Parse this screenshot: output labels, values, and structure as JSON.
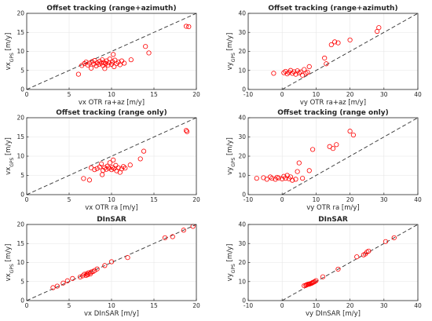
{
  "colors": {
    "marker": "#ff0000",
    "reference_line": "#333333",
    "axes": "#262626",
    "grid": "#e6e6e6"
  },
  "chart_data": [
    {
      "type": "scatter",
      "title": "Offset tracking (range+azimuth)",
      "xlabel": "vx OTR ra+az [m/y]",
      "ylabel": "vx",
      "ylabel_sub": "GPS",
      "ylabel_unit": "[m/y]",
      "xlim": [
        0,
        20
      ],
      "ylim": [
        0,
        20
      ],
      "xticks": [
        0,
        5,
        10,
        15,
        20
      ],
      "yticks": [
        0,
        5,
        10,
        15,
        20
      ],
      "grid": true,
      "marker": "open-circle",
      "reference_line": "y = x (dashed)",
      "points": [
        [
          6.1,
          4.0
        ],
        [
          6.5,
          6.3
        ],
        [
          6.8,
          6.8
        ],
        [
          7.0,
          7.2
        ],
        [
          7.2,
          6.4
        ],
        [
          7.4,
          6.9
        ],
        [
          7.6,
          5.6
        ],
        [
          7.7,
          7.3
        ],
        [
          7.9,
          6.7
        ],
        [
          8.0,
          7.6
        ],
        [
          8.2,
          6.2
        ],
        [
          8.3,
          7.0
        ],
        [
          8.5,
          6.6
        ],
        [
          8.6,
          7.4
        ],
        [
          8.8,
          6.9
        ],
        [
          8.9,
          7.8
        ],
        [
          9.0,
          6.3
        ],
        [
          9.1,
          7.1
        ],
        [
          9.2,
          5.5
        ],
        [
          9.3,
          6.8
        ],
        [
          9.4,
          7.5
        ],
        [
          9.6,
          6.4
        ],
        [
          9.7,
          7.0
        ],
        [
          9.8,
          8.0
        ],
        [
          10.0,
          6.6
        ],
        [
          10.1,
          7.3
        ],
        [
          10.2,
          9.2
        ],
        [
          10.3,
          6.0
        ],
        [
          10.4,
          7.7
        ],
        [
          10.6,
          6.8
        ],
        [
          10.8,
          7.2
        ],
        [
          11.0,
          6.5
        ],
        [
          11.2,
          7.5
        ],
        [
          11.5,
          6.9
        ],
        [
          12.3,
          7.8
        ],
        [
          14.0,
          11.3
        ],
        [
          14.4,
          9.6
        ],
        [
          18.8,
          16.6
        ],
        [
          19.1,
          16.5
        ]
      ]
    },
    {
      "type": "scatter",
      "title": "Offset tracking (range+azimuth)",
      "xlabel": "vy OTR ra+az [m/y]",
      "ylabel": "vy",
      "ylabel_sub": "GPS",
      "ylabel_unit": "[m/y]",
      "xlim": [
        -10,
        40
      ],
      "ylim": [
        0,
        40
      ],
      "xticks": [
        -10,
        0,
        10,
        20,
        30,
        40
      ],
      "yticks": [
        0,
        10,
        20,
        30,
        40
      ],
      "grid": true,
      "marker": "open-circle",
      "reference_line": "y = x (dashed)",
      "points": [
        [
          -2.5,
          8.5
        ],
        [
          0.5,
          8.8
        ],
        [
          1.0,
          9.5
        ],
        [
          1.5,
          8.2
        ],
        [
          2.0,
          9.0
        ],
        [
          2.5,
          10.0
        ],
        [
          3.0,
          8.5
        ],
        [
          3.5,
          9.3
        ],
        [
          4.0,
          8.0
        ],
        [
          4.5,
          9.8
        ],
        [
          5.0,
          8.7
        ],
        [
          5.5,
          9.2
        ],
        [
          6.0,
          7.5
        ],
        [
          6.5,
          10.5
        ],
        [
          7.0,
          8.5
        ],
        [
          7.5,
          9.0
        ],
        [
          8.0,
          12.0
        ],
        [
          12.5,
          16.5
        ],
        [
          13.0,
          13.5
        ],
        [
          14.5,
          23.5
        ],
        [
          15.5,
          25.0
        ],
        [
          16.5,
          24.5
        ],
        [
          20.0,
          26.0
        ],
        [
          28.0,
          30.5
        ],
        [
          28.5,
          32.5
        ]
      ]
    },
    {
      "type": "scatter",
      "title": "Offset tracking (range only)",
      "xlabel": "vx OTR ra [m/y]",
      "ylabel": "vx",
      "ylabel_sub": "GPS",
      "ylabel_unit": "[m/y]",
      "xlim": [
        0,
        20
      ],
      "ylim": [
        0,
        20
      ],
      "xticks": [
        0,
        5,
        10,
        15,
        20
      ],
      "yticks": [
        0,
        5,
        10,
        15,
        20
      ],
      "grid": true,
      "marker": "open-circle",
      "reference_line": "y = x (dashed)",
      "points": [
        [
          6.7,
          4.2
        ],
        [
          7.4,
          3.8
        ],
        [
          7.6,
          7.0
        ],
        [
          8.0,
          6.5
        ],
        [
          8.3,
          6.8
        ],
        [
          8.6,
          7.2
        ],
        [
          8.8,
          8.0
        ],
        [
          8.9,
          5.2
        ],
        [
          9.0,
          6.3
        ],
        [
          9.2,
          7.0
        ],
        [
          9.4,
          6.6
        ],
        [
          9.5,
          7.4
        ],
        [
          9.7,
          6.9
        ],
        [
          9.8,
          8.3
        ],
        [
          10.0,
          6.5
        ],
        [
          10.1,
          7.1
        ],
        [
          10.2,
          9.0
        ],
        [
          10.3,
          6.8
        ],
        [
          10.5,
          7.6
        ],
        [
          10.6,
          6.2
        ],
        [
          10.8,
          7.0
        ],
        [
          11.0,
          5.8
        ],
        [
          11.2,
          6.7
        ],
        [
          11.4,
          7.3
        ],
        [
          11.6,
          6.9
        ],
        [
          12.2,
          7.7
        ],
        [
          13.4,
          9.3
        ],
        [
          13.8,
          11.3
        ],
        [
          18.8,
          16.7
        ],
        [
          18.9,
          16.4
        ]
      ]
    },
    {
      "type": "scatter",
      "title": "Offset tracking (range only)",
      "xlabel": "vy OTR ra [m/y]",
      "ylabel": "vy",
      "ylabel_sub": "GPS",
      "ylabel_unit": "[m/y]",
      "xlim": [
        -10,
        40
      ],
      "ylim": [
        0,
        40
      ],
      "xticks": [
        -10,
        0,
        10,
        20,
        30,
        40
      ],
      "yticks": [
        0,
        10,
        20,
        30,
        40
      ],
      "grid": true,
      "marker": "open-circle",
      "reference_line": "y = x (dashed)",
      "points": [
        [
          -7.5,
          8.5
        ],
        [
          -5.5,
          8.8
        ],
        [
          -4.5,
          8.0
        ],
        [
          -3.5,
          9.2
        ],
        [
          -3.0,
          8.5
        ],
        [
          -2.0,
          8.0
        ],
        [
          -1.5,
          9.0
        ],
        [
          -1.0,
          8.7
        ],
        [
          0.0,
          8.2
        ],
        [
          0.5,
          9.5
        ],
        [
          1.0,
          8.5
        ],
        [
          1.5,
          10.0
        ],
        [
          2.0,
          8.3
        ],
        [
          2.5,
          9.2
        ],
        [
          3.0,
          7.5
        ],
        [
          4.0,
          8.0
        ],
        [
          4.5,
          12.0
        ],
        [
          5.0,
          16.5
        ],
        [
          6.0,
          8.5
        ],
        [
          8.0,
          12.5
        ],
        [
          9.0,
          23.5
        ],
        [
          14.0,
          25.0
        ],
        [
          15.0,
          24.0
        ],
        [
          16.0,
          26.0
        ],
        [
          20.0,
          33.0
        ],
        [
          21.0,
          31.0
        ]
      ]
    },
    {
      "type": "scatter",
      "title": "DInSAR",
      "xlabel": "vx DInSAR [m/y]",
      "ylabel": "vx",
      "ylabel_sub": "GPS",
      "ylabel_unit": "[m/y]",
      "xlim": [
        0,
        20
      ],
      "ylim": [
        0,
        20
      ],
      "xticks": [
        0,
        5,
        10,
        15,
        20
      ],
      "yticks": [
        0,
        5,
        10,
        15,
        20
      ],
      "grid": true,
      "marker": "open-circle",
      "reference_line": "y = x (dashed)",
      "points": [
        [
          3.1,
          3.4
        ],
        [
          3.6,
          3.8
        ],
        [
          4.3,
          4.6
        ],
        [
          4.8,
          5.2
        ],
        [
          5.4,
          5.8
        ],
        [
          6.3,
          6.2
        ],
        [
          6.6,
          6.5
        ],
        [
          6.8,
          6.9
        ],
        [
          7.0,
          6.6
        ],
        [
          7.1,
          7.1
        ],
        [
          7.2,
          6.8
        ],
        [
          7.3,
          7.3
        ],
        [
          7.5,
          7.0
        ],
        [
          7.6,
          7.5
        ],
        [
          7.8,
          7.6
        ],
        [
          8.0,
          7.9
        ],
        [
          8.3,
          8.3
        ],
        [
          9.2,
          9.2
        ],
        [
          10.0,
          10.2
        ],
        [
          11.9,
          11.3
        ],
        [
          16.3,
          16.5
        ],
        [
          17.2,
          16.8
        ],
        [
          18.5,
          18.5
        ],
        [
          19.6,
          19.5
        ]
      ]
    },
    {
      "type": "scatter",
      "title": "DInSAR",
      "xlabel": "vy DInSAR [m/y]",
      "ylabel": "vy",
      "ylabel_sub": "GPS",
      "ylabel_unit": "[m/y]",
      "xlim": [
        -10,
        40
      ],
      "ylim": [
        0,
        40
      ],
      "xticks": [
        -10,
        0,
        10,
        20,
        30,
        40
      ],
      "yticks": [
        0,
        10,
        20,
        30,
        40
      ],
      "grid": true,
      "marker": "open-circle",
      "reference_line": "y = x (dashed)",
      "points": [
        [
          6.5,
          7.8
        ],
        [
          7.0,
          8.0
        ],
        [
          7.2,
          8.3
        ],
        [
          7.5,
          8.5
        ],
        [
          7.8,
          8.6
        ],
        [
          8.0,
          8.7
        ],
        [
          8.2,
          8.8
        ],
        [
          8.5,
          9.0
        ],
        [
          8.8,
          9.2
        ],
        [
          9.0,
          9.5
        ],
        [
          9.3,
          9.7
        ],
        [
          9.6,
          10.0
        ],
        [
          10.0,
          10.5
        ],
        [
          12.0,
          12.5
        ],
        [
          16.5,
          16.5
        ],
        [
          22.0,
          23.0
        ],
        [
          24.0,
          24.0
        ],
        [
          24.5,
          24.5
        ],
        [
          25.0,
          25.5
        ],
        [
          25.5,
          26.0
        ],
        [
          30.5,
          31.0
        ],
        [
          33.0,
          33.0
        ]
      ]
    }
  ]
}
